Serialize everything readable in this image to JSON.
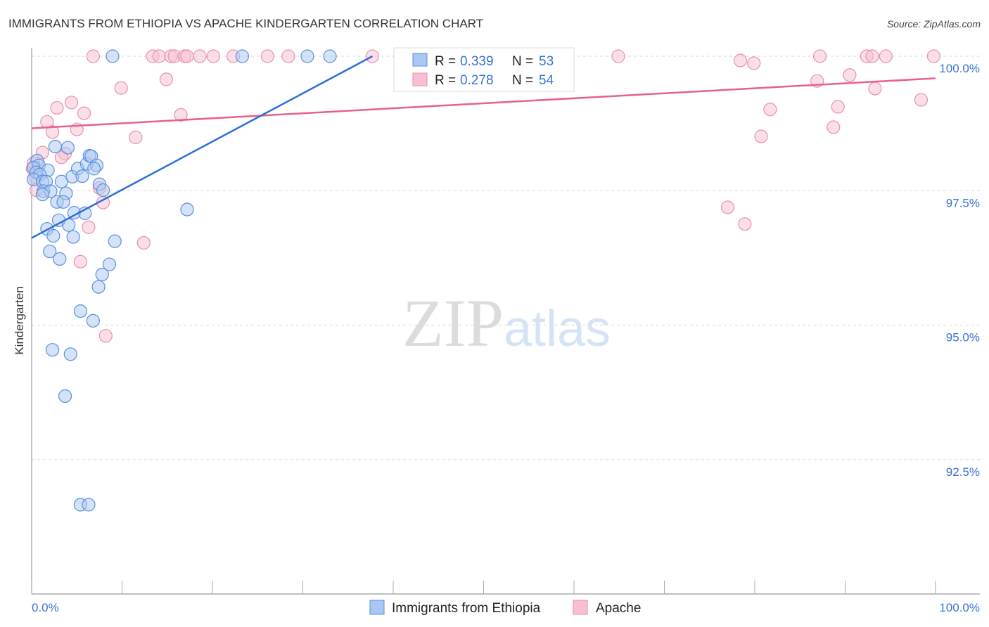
{
  "chart_data": {
    "type": "scatter",
    "title": "IMMIGRANTS FROM ETHIOPIA VS APACHE KINDERGARTEN CORRELATION CHART",
    "source": "Source: ZipAtlas.com",
    "xlabel": "",
    "ylabel": "Kindergarten",
    "xlim": [
      0,
      100
    ],
    "ylim": [
      90,
      100
    ],
    "x_tick_labels": [
      "0.0%",
      "100.0%"
    ],
    "y_ticks": [
      {
        "value": 100,
        "label": "100.0%"
      },
      {
        "value": 97.5,
        "label": "97.5%"
      },
      {
        "value": 95,
        "label": "95.0%"
      },
      {
        "value": 92.5,
        "label": "92.5%"
      }
    ],
    "grid": true,
    "watermark": "ZIPatlas",
    "legend_placement": "top-center",
    "colors": {
      "blue_fill": "#a9c7f2",
      "blue_stroke": "#5b8fdc",
      "blue_line": "#2a6fd6",
      "pink_fill": "#f7bfd1",
      "pink_stroke": "#e98fae",
      "pink_line": "#e8608c",
      "accent_text": "#3a72d0"
    },
    "series": [
      {
        "name": "Immigrants from Ethiopia",
        "r_label": "R =",
        "r": "0.339",
        "n_label": "N =",
        "n": "53",
        "trend": {
          "x": [
            0,
            37.7
          ],
          "y": [
            96.62,
            100
          ]
        },
        "points": [
          [
            8.95,
            100
          ],
          [
            23.3,
            100
          ],
          [
            30.5,
            100
          ],
          [
            33.0,
            100
          ],
          [
            0.6,
            98.06
          ],
          [
            0.8,
            97.97
          ],
          [
            0.2,
            97.93
          ],
          [
            0.5,
            97.84
          ],
          [
            1.8,
            97.88
          ],
          [
            0.9,
            97.8
          ],
          [
            0.2,
            97.71
          ],
          [
            1.2,
            97.67
          ],
          [
            1.6,
            97.67
          ],
          [
            1.3,
            97.49
          ],
          [
            2.1,
            97.49
          ],
          [
            1.2,
            97.43
          ],
          [
            2.6,
            98.32
          ],
          [
            4.0,
            98.3
          ],
          [
            3.3,
            97.67
          ],
          [
            4.5,
            97.76
          ],
          [
            5.1,
            97.91
          ],
          [
            5.6,
            97.77
          ],
          [
            6.1,
            98.0
          ],
          [
            6.4,
            98.15
          ],
          [
            6.6,
            98.14
          ],
          [
            7.2,
            97.97
          ],
          [
            6.9,
            97.91
          ],
          [
            7.5,
            97.62
          ],
          [
            7.9,
            97.51
          ],
          [
            3.8,
            97.45
          ],
          [
            2.8,
            97.29
          ],
          [
            3.5,
            97.29
          ],
          [
            4.7,
            97.09
          ],
          [
            5.9,
            97.08
          ],
          [
            3.0,
            96.95
          ],
          [
            4.1,
            96.86
          ],
          [
            1.7,
            96.79
          ],
          [
            2.4,
            96.66
          ],
          [
            4.6,
            96.64
          ],
          [
            9.2,
            96.56
          ],
          [
            2.0,
            96.37
          ],
          [
            3.1,
            96.23
          ],
          [
            8.6,
            96.13
          ],
          [
            7.8,
            95.94
          ],
          [
            7.4,
            95.71
          ],
          [
            5.4,
            95.26
          ],
          [
            6.8,
            95.08
          ],
          [
            2.3,
            94.54
          ],
          [
            4.3,
            94.46
          ],
          [
            3.7,
            93.68
          ],
          [
            5.4,
            91.66
          ],
          [
            6.3,
            91.66
          ],
          [
            17.2,
            97.15
          ]
        ]
      },
      {
        "name": "Apache",
        "r_label": "R =",
        "r": "0.278",
        "n_label": "N =",
        "n": "54",
        "trend": {
          "x": [
            0,
            100
          ],
          "y": [
            98.66,
            99.59
          ]
        },
        "points": [
          [
            6.8,
            100
          ],
          [
            13.4,
            100
          ],
          [
            14.1,
            100
          ],
          [
            15.4,
            100
          ],
          [
            15.8,
            100
          ],
          [
            16.9,
            100
          ],
          [
            17.2,
            100
          ],
          [
            18.6,
            100
          ],
          [
            20.1,
            100
          ],
          [
            22.3,
            100
          ],
          [
            26.1,
            100
          ],
          [
            28.4,
            100
          ],
          [
            37.7,
            100
          ],
          [
            64.9,
            100
          ],
          [
            87.2,
            100
          ],
          [
            92.4,
            100
          ],
          [
            93.0,
            100
          ],
          [
            94.5,
            100
          ],
          [
            99.8,
            100
          ],
          [
            78.4,
            99.92
          ],
          [
            79.9,
            99.87
          ],
          [
            90.5,
            99.65
          ],
          [
            86.9,
            99.54
          ],
          [
            14.9,
            99.57
          ],
          [
            9.9,
            99.41
          ],
          [
            93.3,
            99.4
          ],
          [
            4.4,
            99.14
          ],
          [
            2.8,
            99.04
          ],
          [
            98.4,
            99.19
          ],
          [
            5.8,
            98.94
          ],
          [
            16.5,
            98.91
          ],
          [
            81.7,
            99.01
          ],
          [
            89.2,
            99.06
          ],
          [
            1.7,
            98.78
          ],
          [
            5.0,
            98.64
          ],
          [
            2.3,
            98.59
          ],
          [
            11.5,
            98.49
          ],
          [
            80.7,
            98.51
          ],
          [
            88.7,
            98.68
          ],
          [
            1.2,
            98.21
          ],
          [
            3.7,
            98.19
          ],
          [
            3.3,
            98.12
          ],
          [
            0.1,
            97.91
          ],
          [
            0.4,
            97.75
          ],
          [
            0.5,
            97.51
          ],
          [
            7.5,
            97.55
          ],
          [
            7.9,
            97.28
          ],
          [
            77.0,
            97.19
          ],
          [
            78.9,
            96.88
          ],
          [
            6.3,
            96.82
          ],
          [
            12.4,
            96.53
          ],
          [
            5.4,
            96.18
          ],
          [
            8.2,
            94.8
          ],
          [
            0.2,
            98.01
          ]
        ]
      }
    ]
  }
}
